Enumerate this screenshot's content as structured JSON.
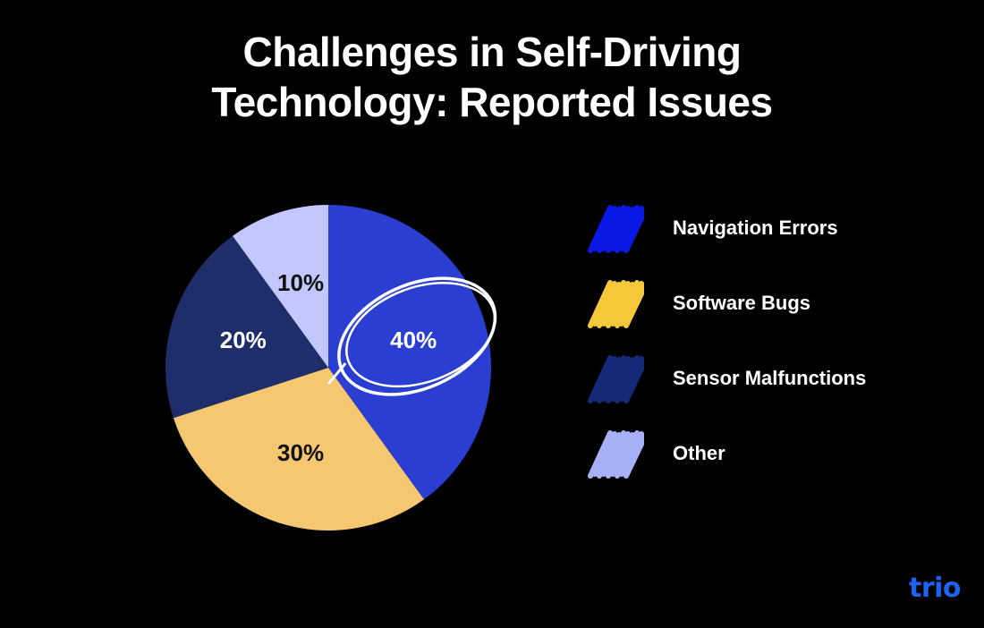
{
  "chart_data": {
    "type": "pie",
    "title_lines": [
      "Challenges in Self-Driving",
      "Technology: Reported Issues"
    ],
    "slices": [
      {
        "label": "Navigation Errors",
        "value": 40,
        "value_label": "40%",
        "color": "#2a3fd1",
        "label_color": "#ffffff",
        "highlighted": true
      },
      {
        "label": "Software Bugs",
        "value": 30,
        "value_label": "30%",
        "color": "#f4c770",
        "label_color": "#111111",
        "highlighted": false
      },
      {
        "label": "Sensor Malfunctions",
        "value": 20,
        "value_label": "20%",
        "color": "#1f2e6a",
        "label_color": "#ffffff",
        "highlighted": false
      },
      {
        "label": "Other",
        "value": 10,
        "value_label": "10%",
        "color": "#c2c8fb",
        "label_color": "#111111",
        "highlighted": false
      }
    ],
    "legend_position": "right",
    "start": "top, clockwise"
  },
  "legend": {
    "swatch_colors": [
      "#0a18e6",
      "#f5c83c",
      "#142a78",
      "#a8b0f8"
    ]
  },
  "brand": {
    "logo_text": "trio",
    "color": "#1f63f2"
  }
}
